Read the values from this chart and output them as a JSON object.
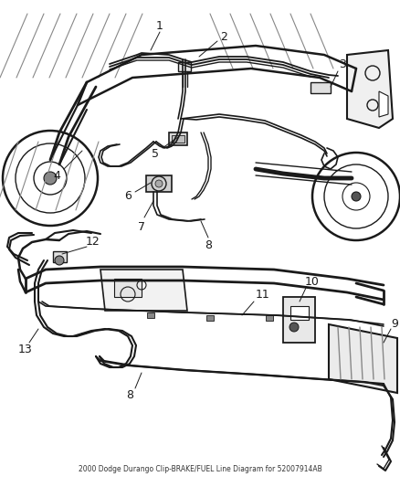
{
  "title": "2000 Dodge Durango Clip-BRAKE/FUEL Line Diagram for 52007914AB",
  "bg": "#ffffff",
  "lc": "#1a1a1a",
  "fig_w": 4.38,
  "fig_h": 5.33,
  "dpi": 100
}
